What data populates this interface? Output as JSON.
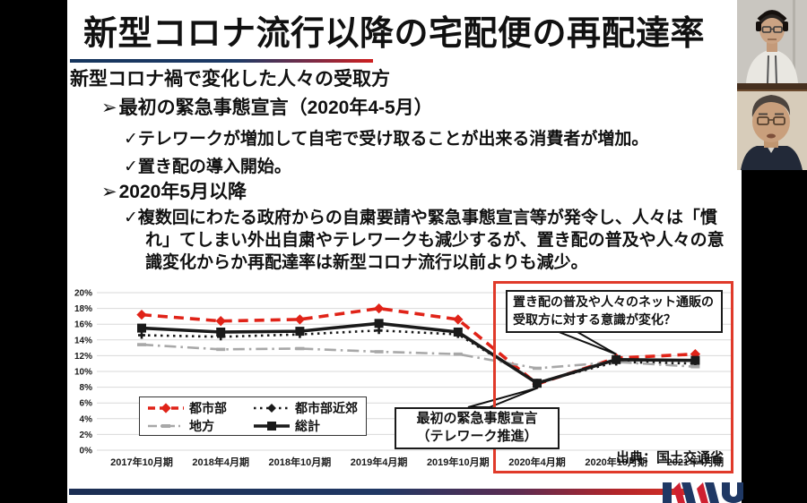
{
  "slide": {
    "title": "新型コロナ流行以降の宅配便の再配達率",
    "subtitle": "新型コロナ禍で変化した人々の受取方",
    "bullets": [
      {
        "marker": "➢",
        "text": "最初の緊急事態宣言（2020年4-5月）",
        "subs": [
          "✓テレワークが増加して自宅で受け取ることが出来る消費者が増加。",
          "✓置き配の導入開始。"
        ]
      },
      {
        "marker": "➢",
        "text": "2020年5月以降",
        "subs": [
          "✓複数回にわたる政府からの自粛要請や緊急事態宣言等が発令し、人々は「慣れ」てしまい外出自粛やテレワークも減少するが、置き配の普及や人々の意識変化からか再配達率は新型コロナ流行以前よりも減少。"
        ]
      }
    ],
    "annotations": {
      "highlight_note": "置き配の普及や人々のネット通販の受取方に対する意識が変化？",
      "callout_line1": "最初の緊急事態宣言",
      "callout_line2": "（テレワーク推進）",
      "source": "出典：国土交通省"
    },
    "colors": {
      "highlight_box_red": "#e03a2a",
      "underline_gradient_start": "#16355d",
      "underline_gradient_end": "#ce1f1f",
      "series_urban_red": "#e02318",
      "series_black": "#1a1a1a",
      "series_rural_gray": "#a8a8a8"
    }
  },
  "chart_data": {
    "type": "line",
    "title": "",
    "xlabel": "",
    "ylabel": "",
    "categories": [
      "2017年10月期",
      "2018年4月期",
      "2018年10月期",
      "2019年4月期",
      "2019年10月期",
      "2020年4月期",
      "2020年10月期",
      "2021年4月期"
    ],
    "series": [
      {
        "name": "都市部",
        "style": "dashed",
        "marker": "diamond",
        "color": "#e02318",
        "values": [
          17.2,
          16.4,
          16.6,
          18.0,
          16.6,
          8.4,
          11.7,
          12.2
        ]
      },
      {
        "name": "都市部近郊",
        "style": "dotted",
        "marker": "plus",
        "color": "#1a1a1a",
        "values": [
          14.6,
          14.4,
          14.7,
          15.2,
          14.7,
          8.6,
          11.2,
          11.0
        ]
      },
      {
        "name": "地方",
        "style": "dashdot",
        "marker": "dash",
        "color": "#a8a8a8",
        "values": [
          13.4,
          12.8,
          12.9,
          12.5,
          12.2,
          10.4,
          11.2,
          10.6
        ]
      },
      {
        "name": "総計",
        "style": "solid",
        "marker": "square",
        "color": "#1a1a1a",
        "values": [
          15.5,
          15.0,
          15.1,
          16.1,
          15.0,
          8.5,
          11.5,
          11.4
        ]
      }
    ],
    "ylim": [
      0,
      20
    ],
    "ytick_step": 2,
    "ytick_suffix": "%",
    "grid": true,
    "legend_position": "inset-bottom-left"
  }
}
